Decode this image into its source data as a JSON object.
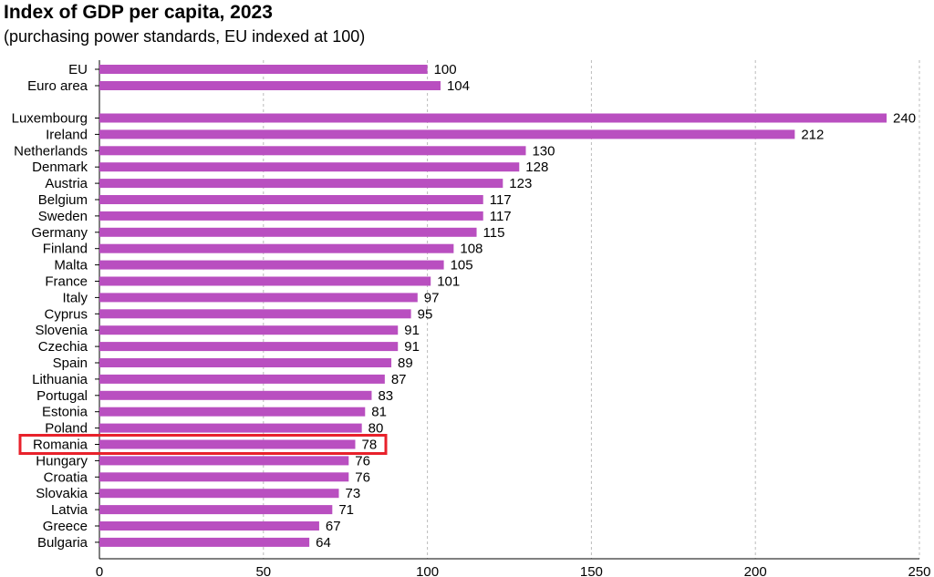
{
  "chart_data": {
    "type": "bar",
    "orientation": "horizontal",
    "title": "Index of GDP per capita, 2023",
    "subtitle": "(purchasing power standards, EU indexed at 100)",
    "categories": [
      "EU",
      "Euro area",
      "Luxembourg",
      "Ireland",
      "Netherlands",
      "Denmark",
      "Austria",
      "Belgium",
      "Sweden",
      "Germany",
      "Finland",
      "Malta",
      "France",
      "Italy",
      "Cyprus",
      "Slovenia",
      "Czechia",
      "Spain",
      "Lithuania",
      "Portugal",
      "Estonia",
      "Poland",
      "Romania",
      "Hungary",
      "Croatia",
      "Slovakia",
      "Latvia",
      "Greece",
      "Bulgaria"
    ],
    "values": [
      100,
      104,
      240,
      212,
      130,
      128,
      123,
      117,
      117,
      115,
      108,
      105,
      101,
      97,
      95,
      91,
      91,
      89,
      87,
      83,
      81,
      80,
      78,
      76,
      76,
      73,
      71,
      67,
      64
    ],
    "xlim": [
      0,
      250
    ],
    "xticks": [
      0,
      50,
      100,
      150,
      200,
      250
    ],
    "grid": "vertical-dashed",
    "highlighted": "Romania",
    "colors": {
      "bar": "#B94FC0",
      "highlight": "#E8212B",
      "grid": "#BBBBBB"
    }
  }
}
